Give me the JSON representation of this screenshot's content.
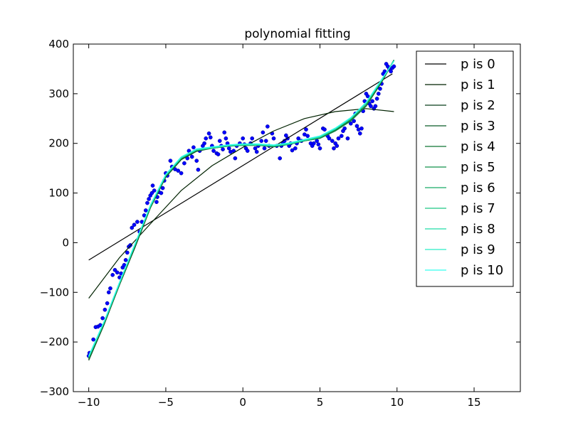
{
  "chart_data": {
    "type": "line",
    "title": "polynomial fitting",
    "xlabel": "",
    "ylabel": "",
    "xlim": [
      -11,
      18
    ],
    "ylim": [
      -300,
      400
    ],
    "x_ticks": [
      -10,
      -5,
      0,
      5,
      10,
      15
    ],
    "x_tick_labels": [
      "−10",
      "−5",
      "0",
      "5",
      "10",
      "15"
    ],
    "y_ticks": [
      -300,
      -200,
      -100,
      0,
      100,
      200,
      300,
      400
    ],
    "y_tick_labels": [
      "−300",
      "−200",
      "−100",
      "0",
      "100",
      "200",
      "300",
      "400"
    ],
    "grid": false,
    "legend_position": "top-right",
    "scatter_color": "#0000ff",
    "scatter_points": [
      [
        -10.0,
        -228
      ],
      [
        -9.95,
        -222
      ],
      [
        -9.7,
        -195
      ],
      [
        -9.55,
        -170
      ],
      [
        -9.4,
        -169
      ],
      [
        -9.25,
        -166
      ],
      [
        -9.1,
        -152
      ],
      [
        -8.95,
        -135
      ],
      [
        -8.8,
        -122
      ],
      [
        -8.7,
        -100
      ],
      [
        -8.6,
        -92
      ],
      [
        -8.45,
        -65
      ],
      [
        -8.3,
        -55
      ],
      [
        -8.15,
        -60
      ],
      [
        -8.0,
        -70
      ],
      [
        -7.9,
        -62
      ],
      [
        -7.8,
        -50
      ],
      [
        -7.7,
        -45
      ],
      [
        -7.6,
        -35
      ],
      [
        -7.5,
        -20
      ],
      [
        -7.4,
        -8
      ],
      [
        -7.3,
        -5
      ],
      [
        -7.2,
        30
      ],
      [
        -7.05,
        36
      ],
      [
        -6.85,
        42
      ],
      [
        -6.7,
        22
      ],
      [
        -6.55,
        42
      ],
      [
        -6.4,
        55
      ],
      [
        -6.3,
        65
      ],
      [
        -6.2,
        80
      ],
      [
        -6.1,
        88
      ],
      [
        -6.0,
        95
      ],
      [
        -5.9,
        100
      ],
      [
        -5.85,
        115
      ],
      [
        -5.75,
        105
      ],
      [
        -5.6,
        82
      ],
      [
        -5.55,
        92
      ],
      [
        -5.45,
        102
      ],
      [
        -5.3,
        100
      ],
      [
        -5.2,
        110
      ],
      [
        -5.1,
        125
      ],
      [
        -5.0,
        140
      ],
      [
        -4.9,
        135
      ],
      [
        -4.7,
        165
      ],
      [
        -4.6,
        153
      ],
      [
        -4.4,
        148
      ],
      [
        -4.2,
        145
      ],
      [
        -4.0,
        140
      ],
      [
        -3.8,
        160
      ],
      [
        -3.6,
        170
      ],
      [
        -3.5,
        185
      ],
      [
        -3.4,
        180
      ],
      [
        -3.3,
        173
      ],
      [
        -3.2,
        192
      ],
      [
        -3.0,
        165
      ],
      [
        -2.9,
        147
      ],
      [
        -2.8,
        185
      ],
      [
        -2.6,
        195
      ],
      [
        -2.5,
        200
      ],
      [
        -2.4,
        210
      ],
      [
        -2.2,
        220
      ],
      [
        -2.1,
        212
      ],
      [
        -2.0,
        195
      ],
      [
        -1.9,
        185
      ],
      [
        -1.7,
        180
      ],
      [
        -1.6,
        178
      ],
      [
        -1.5,
        205
      ],
      [
        -1.4,
        195
      ],
      [
        -1.3,
        188
      ],
      [
        -1.2,
        222
      ],
      [
        -1.1,
        210
      ],
      [
        -1.0,
        200
      ],
      [
        -0.9,
        190
      ],
      [
        -0.8,
        183
      ],
      [
        -0.6,
        185
      ],
      [
        -0.5,
        170
      ],
      [
        -0.4,
        195
      ],
      [
        -0.2,
        200
      ],
      [
        0.0,
        210
      ],
      [
        0.1,
        198
      ],
      [
        0.2,
        190
      ],
      [
        0.3,
        185
      ],
      [
        0.5,
        200
      ],
      [
        0.6,
        210
      ],
      [
        0.8,
        190
      ],
      [
        0.9,
        183
      ],
      [
        1.0,
        195
      ],
      [
        1.2,
        205
      ],
      [
        1.3,
        222
      ],
      [
        1.4,
        190
      ],
      [
        1.5,
        205
      ],
      [
        1.6,
        234
      ],
      [
        1.7,
        195
      ],
      [
        1.9,
        220
      ],
      [
        2.0,
        210
      ],
      [
        2.2,
        195
      ],
      [
        2.4,
        170
      ],
      [
        2.5,
        195
      ],
      [
        2.6,
        200
      ],
      [
        2.7,
        205
      ],
      [
        2.8,
        216
      ],
      [
        2.9,
        210
      ],
      [
        3.0,
        195
      ],
      [
        3.1,
        200
      ],
      [
        3.2,
        186
      ],
      [
        3.4,
        190
      ],
      [
        3.5,
        200
      ],
      [
        3.6,
        210
      ],
      [
        3.8,
        205
      ],
      [
        4.0,
        218
      ],
      [
        4.1,
        228
      ],
      [
        4.2,
        215
      ],
      [
        4.4,
        200
      ],
      [
        4.5,
        195
      ],
      [
        4.6,
        200
      ],
      [
        4.8,
        205
      ],
      [
        4.9,
        198
      ],
      [
        5.0,
        190
      ],
      [
        5.2,
        230
      ],
      [
        5.3,
        228
      ],
      [
        5.5,
        215
      ],
      [
        5.6,
        210
      ],
      [
        5.8,
        205
      ],
      [
        5.9,
        190
      ],
      [
        6.0,
        200
      ],
      [
        6.1,
        195
      ],
      [
        6.2,
        210
      ],
      [
        6.4,
        215
      ],
      [
        6.5,
        225
      ],
      [
        6.6,
        230
      ],
      [
        6.8,
        210
      ],
      [
        7.0,
        240
      ],
      [
        7.2,
        245
      ],
      [
        7.3,
        260
      ],
      [
        7.4,
        235
      ],
      [
        7.5,
        228
      ],
      [
        7.6,
        220
      ],
      [
        7.7,
        230
      ],
      [
        7.8,
        265
      ],
      [
        7.9,
        285
      ],
      [
        8.0,
        300
      ],
      [
        8.1,
        295
      ],
      [
        8.2,
        280
      ],
      [
        8.3,
        275
      ],
      [
        8.4,
        285
      ],
      [
        8.5,
        270
      ],
      [
        8.6,
        275
      ],
      [
        8.7,
        290
      ],
      [
        8.8,
        300
      ],
      [
        8.9,
        310
      ],
      [
        9.0,
        320
      ],
      [
        9.1,
        340
      ],
      [
        9.2,
        345
      ],
      [
        9.3,
        360
      ],
      [
        9.4,
        355
      ],
      [
        9.5,
        350
      ],
      [
        9.6,
        345
      ],
      [
        9.7,
        352
      ],
      [
        9.8,
        355
      ]
    ],
    "series": [
      {
        "name": "p is 0",
        "color": "#000000",
        "x": [
          -10,
          9.7
        ],
        "y": [
          -35,
          340
        ]
      },
      {
        "name": "p is 1",
        "color": "#002200",
        "x": [
          -10,
          -8,
          -6,
          -4,
          -2,
          0,
          2,
          4,
          6,
          8,
          9.8
        ],
        "y": [
          -112,
          -30,
          38,
          105,
          155,
          192,
          225,
          250,
          264,
          270,
          264
        ]
      },
      {
        "name": "p is 2",
        "color": "#073f1b",
        "x": [
          -10,
          -9,
          -8,
          -7,
          -6,
          -5,
          -4,
          -3,
          -2,
          -1,
          0,
          1,
          2,
          3,
          4,
          5,
          6,
          7,
          8,
          9,
          9.8
        ],
        "y": [
          -237,
          -165,
          -85,
          -10,
          70,
          133,
          168,
          185,
          190,
          195,
          196,
          196,
          193,
          198,
          205,
          210,
          225,
          245,
          275,
          323,
          367
        ]
      },
      {
        "name": "p is 3",
        "color": "#0b5a27",
        "x": [
          -10,
          -9,
          -8,
          -7,
          -6,
          -5,
          -4,
          -3,
          -2,
          -1,
          0,
          1,
          2,
          3,
          4,
          5,
          6,
          7,
          8,
          9,
          9.8
        ],
        "y": [
          -235,
          -163,
          -84,
          -8,
          70,
          132,
          167,
          184,
          190,
          194,
          196,
          196,
          194,
          198,
          205,
          211,
          226,
          246,
          276,
          324,
          368
        ]
      },
      {
        "name": "p is 4",
        "color": "#0e7533",
        "x": [
          -10,
          -9,
          -8,
          -7,
          -6,
          -5,
          -4,
          -3,
          -2,
          -1,
          0,
          1,
          2,
          3,
          4,
          5,
          6,
          7,
          8,
          9,
          9.8
        ],
        "y": [
          -234,
          -162,
          -83,
          -7,
          71,
          134,
          169,
          186,
          191,
          195,
          197,
          197,
          195,
          199,
          206,
          212,
          227,
          247,
          277,
          325,
          367
        ]
      },
      {
        "name": "p is 5",
        "color": "#12904a",
        "x": [
          -10,
          -9,
          -8,
          -7,
          -6,
          -5,
          -4,
          -3,
          -2,
          -1,
          0,
          1,
          2,
          3,
          4,
          5,
          6,
          7,
          8,
          9,
          9.8
        ],
        "y": [
          -233,
          -162,
          -83,
          -6,
          72,
          135,
          170,
          187,
          191,
          195,
          197,
          197,
          194,
          198,
          205,
          210,
          225,
          245,
          276,
          326,
          368
        ]
      },
      {
        "name": "p is 6",
        "color": "#17ab66",
        "x": [
          -10,
          -9,
          -8,
          -7,
          -6,
          -5,
          -4,
          -3,
          -2,
          -1,
          0,
          1,
          2,
          3,
          4,
          5,
          6,
          7,
          8,
          9,
          9.8
        ],
        "y": [
          -232,
          -161,
          -82,
          -5,
          73,
          135,
          170,
          186,
          190,
          194,
          196,
          196,
          194,
          198,
          206,
          212,
          228,
          249,
          280,
          326,
          366
        ]
      },
      {
        "name": "p is 7",
        "color": "#1cc683",
        "x": [
          -10,
          -9,
          -8,
          -7,
          -6,
          -5,
          -4,
          -3,
          -2,
          -1,
          0,
          1,
          2,
          3,
          4,
          5,
          6,
          7,
          8,
          9,
          9.8
        ],
        "y": [
          -231,
          -160,
          -81,
          -4,
          74,
          136,
          171,
          187,
          191,
          195,
          197,
          197,
          195,
          199,
          206,
          213,
          229,
          250,
          281,
          327,
          366
        ]
      },
      {
        "name": "p is 8",
        "color": "#22dda6",
        "x": [
          -10,
          -9,
          -8,
          -7,
          -6,
          -5,
          -4,
          -3,
          -2,
          -1,
          0,
          1,
          2,
          3,
          4,
          5,
          6,
          7,
          8,
          9,
          9.8
        ],
        "y": [
          -230,
          -160,
          -81,
          -4,
          74,
          136,
          171,
          187,
          191,
          195,
          197,
          197,
          195,
          199,
          206,
          213,
          229,
          250,
          281,
          327,
          366
        ]
      },
      {
        "name": "p is 9",
        "color": "#29eec5",
        "x": [
          -10,
          -9,
          -8,
          -7,
          -6,
          -5,
          -4,
          -3,
          -2,
          -1,
          0,
          1,
          2,
          3,
          4,
          5,
          6,
          7,
          8,
          9,
          9.8
        ],
        "y": [
          -229,
          -159,
          -80,
          -3,
          75,
          137,
          172,
          188,
          192,
          196,
          198,
          198,
          196,
          200,
          207,
          214,
          230,
          251,
          282,
          328,
          366
        ]
      },
      {
        "name": "p is 10",
        "color": "#33ffee",
        "x": [
          -10,
          -9,
          -8,
          -7,
          -6,
          -5,
          -4,
          -3,
          -2,
          -1,
          0,
          1,
          2,
          3,
          4,
          5,
          6,
          7,
          8,
          9,
          9.8
        ],
        "y": [
          -228,
          -158,
          -79,
          -2,
          76,
          138,
          173,
          189,
          193,
          197,
          199,
          199,
          197,
          201,
          208,
          215,
          231,
          252,
          283,
          329,
          366
        ]
      }
    ]
  }
}
